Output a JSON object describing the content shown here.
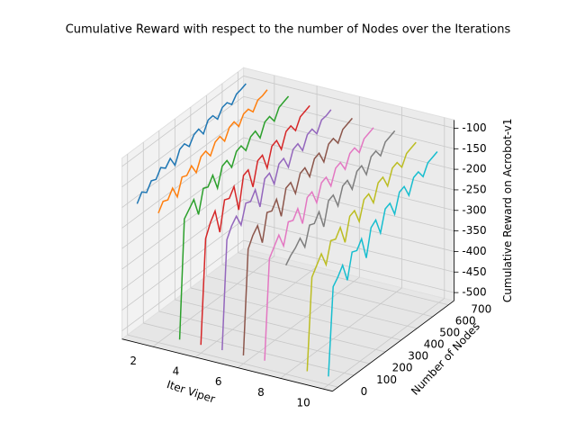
{
  "chart_data": {
    "type": "line3d",
    "title": "Cumulative Reward with respect to the number of Nodes over the Iterations",
    "xlabel": "Iter Viper",
    "ylabel": "Number of Nodes",
    "zlabel": "Cumulative Reward on Acrobot-v1",
    "xlim": [
      0.55,
      10.45
    ],
    "xticks": [
      2,
      4,
      6,
      8,
      10
    ],
    "ylim": [
      -35,
      735
    ],
    "yticks": [
      0,
      100,
      200,
      300,
      400,
      500,
      600,
      700
    ],
    "zlim": [
      -520,
      -80
    ],
    "zticks": [
      -500,
      -450,
      -400,
      -350,
      -300,
      -250,
      -200,
      -150,
      -100
    ],
    "grid": true,
    "nodes": [
      0,
      30,
      60,
      90,
      120,
      150,
      180,
      210,
      240,
      270,
      300,
      330,
      360,
      390,
      420,
      450,
      480,
      510,
      540,
      570,
      600,
      630,
      660,
      690
    ],
    "series": [
      {
        "x": 1,
        "color": "#1f77b4",
        "values": [
          -195,
          -175,
          -185,
          -165,
          -170,
          -150,
          -160,
          -145,
          -170,
          -140,
          -135,
          -150,
          -130,
          -125,
          -145,
          -120,
          -118,
          -135,
          -115,
          -112,
          -125,
          -108,
          -105,
          -100
        ]
      },
      {
        "x": 2,
        "color": "#ff7f0e",
        "values": [
          -205,
          -185,
          -190,
          -170,
          -200,
          -160,
          -165,
          -150,
          -175,
          -145,
          -140,
          -160,
          -135,
          -130,
          -150,
          -125,
          -120,
          -140,
          -118,
          -115,
          -130,
          -110,
          -108,
          -102
        ]
      },
      {
        "x": 3,
        "color": "#2ca02c",
        "values": [
          -500,
          -215,
          -200,
          -185,
          -230,
          -175,
          -180,
          -160,
          -200,
          -155,
          -150,
          -175,
          -145,
          -140,
          -160,
          -135,
          -130,
          -155,
          -125,
          -120,
          -140,
          -115,
          -110,
          -105
        ]
      },
      {
        "x": 4,
        "color": "#d62728",
        "values": [
          -500,
          -250,
          -220,
          -200,
          -260,
          -190,
          -195,
          -175,
          -240,
          -165,
          -160,
          -210,
          -155,
          -150,
          -190,
          -145,
          -140,
          -170,
          -135,
          -130,
          -150,
          -125,
          -120,
          -115
        ]
      },
      {
        "x": 5,
        "color": "#9467bd",
        "values": [
          -500,
          -240,
          -215,
          -200,
          -230,
          -185,
          -190,
          -170,
          -220,
          -160,
          -155,
          -190,
          -150,
          -145,
          -175,
          -140,
          -135,
          -160,
          -130,
          -125,
          -145,
          -120,
          -118,
          -112
        ]
      },
      {
        "x": 6,
        "color": "#8c564b",
        "values": [
          -500,
          -250,
          -225,
          -210,
          -260,
          -195,
          -200,
          -180,
          -230,
          -170,
          -165,
          -200,
          -160,
          -155,
          -185,
          -150,
          -145,
          -175,
          -140,
          -135,
          -155,
          -130,
          -125,
          -120
        ]
      },
      {
        "x": 7,
        "color": "#e377c2",
        "values": [
          -500,
          -260,
          -240,
          -220,
          -255,
          -205,
          -210,
          -190,
          -235,
          -180,
          -175,
          -210,
          -170,
          -165,
          -195,
          -160,
          -155,
          -180,
          -150,
          -145,
          -165,
          -140,
          -135,
          -130
        ]
      },
      {
        "x": 8,
        "color": "#7f7f7f",
        "values": [
          -255,
          -240,
          -230,
          -215,
          -245,
          -200,
          -205,
          -185,
          -230,
          -175,
          -170,
          -205,
          -165,
          -160,
          -190,
          -155,
          -150,
          -180,
          -145,
          -140,
          -160,
          -135,
          -130,
          -125
        ]
      },
      {
        "x": 9,
        "color": "#bcbd22",
        "values": [
          -500,
          -280,
          -260,
          -240,
          -275,
          -225,
          -230,
          -210,
          -255,
          -200,
          -195,
          -230,
          -185,
          -180,
          -210,
          -170,
          -165,
          -195,
          -160,
          -155,
          -175,
          -150,
          -145,
          -140
        ]
      },
      {
        "x": 10,
        "color": "#17becf",
        "values": [
          -500,
          -290,
          -275,
          -255,
          -300,
          -240,
          -245,
          -225,
          -280,
          -215,
          -205,
          -245,
          -195,
          -190,
          -225,
          -180,
          -175,
          -205,
          -170,
          -165,
          -185,
          -160,
          -155,
          -150
        ]
      }
    ]
  }
}
